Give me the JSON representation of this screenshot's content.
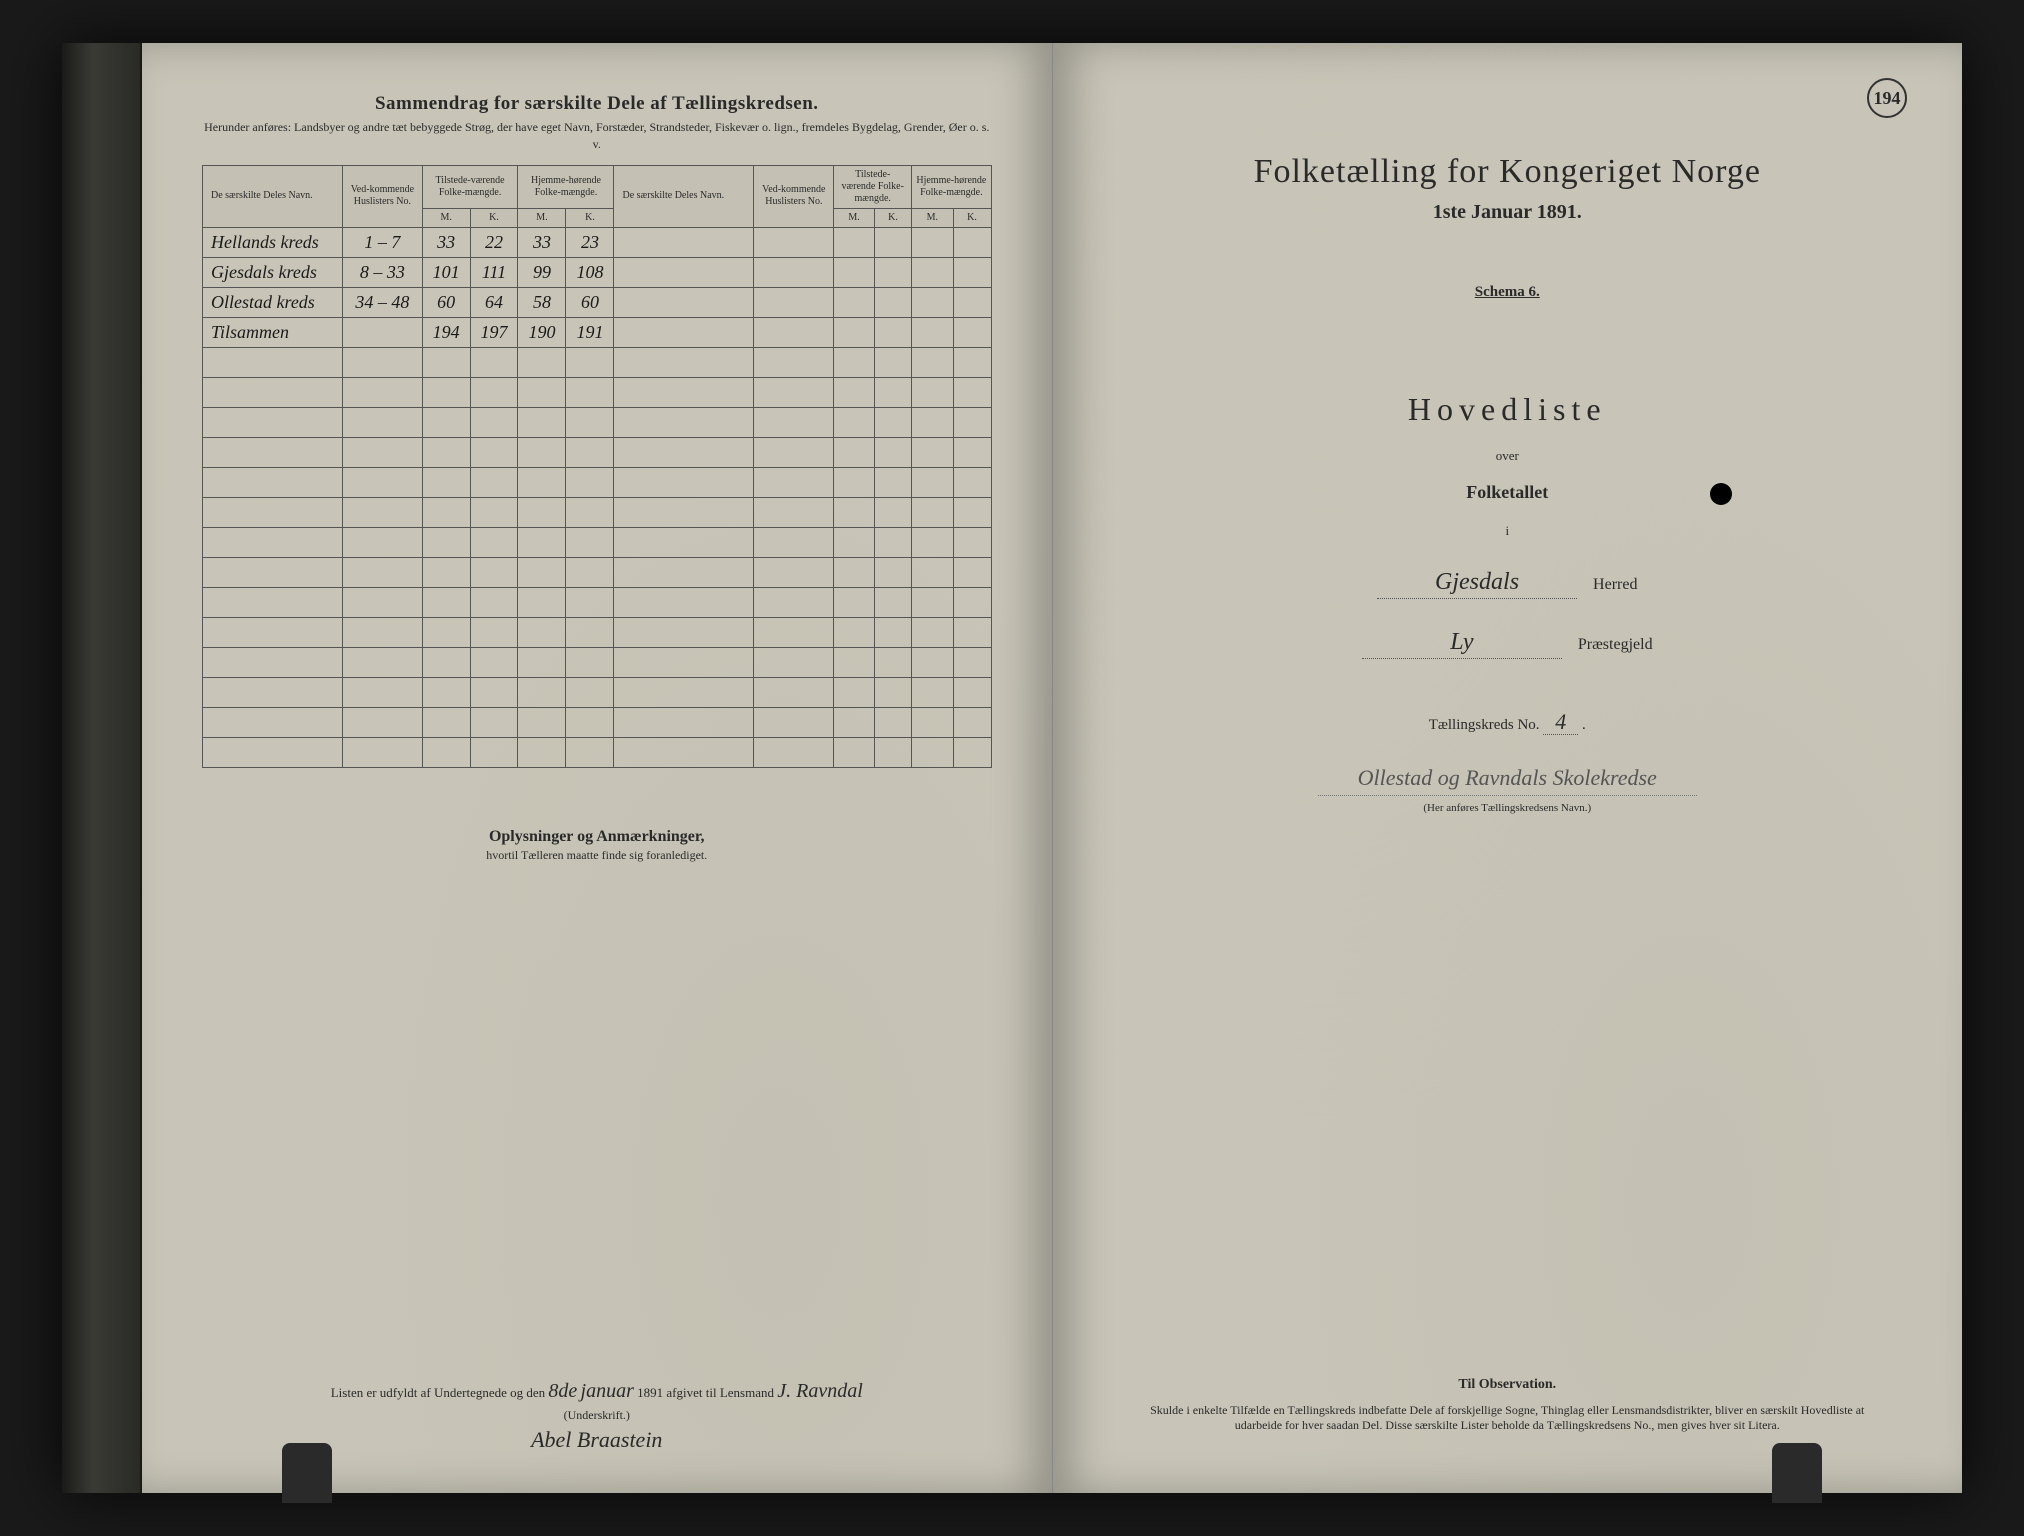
{
  "page_number": "194",
  "left": {
    "title": "Sammendrag for særskilte Dele af Tællingskredsen.",
    "subtitle": "Herunder anføres: Landsbyer og andre tæt bebyggede Strøg, der have eget Navn, Forstæder, Strandsteder, Fiskevær o. lign., fremdeles Bygdelag, Grender, Øer o. s. v.",
    "columns": {
      "name": "De særskilte Deles Navn.",
      "huslister": "Ved-kommende Huslisters No.",
      "tilstede": "Tilstede-værende Folke-mængde.",
      "hjemme": "Hjemme-hørende Folke-mængde.",
      "name2": "De særskilte Deles Navn.",
      "huslister2": "Ved-kommende Huslisters No.",
      "tilstede2": "Tilstede-værende Folke-mængde.",
      "hjemme2": "Hjemme-hørende Folke-mængde.",
      "m": "M.",
      "k": "K."
    },
    "rows": [
      {
        "name": "Hellands kreds",
        "hus": "1 – 7",
        "tm": "33",
        "tk": "22",
        "hm": "33",
        "hk": "23"
      },
      {
        "name": "Gjesdals kreds",
        "hus": "8 – 33",
        "tm": "101",
        "tk": "111",
        "hm": "99",
        "hk": "108"
      },
      {
        "name": "Ollestad kreds",
        "hus": "34 – 48",
        "tm": "60",
        "tk": "64",
        "hm": "58",
        "hk": "60"
      },
      {
        "name": "Tilsammen",
        "hus": "",
        "tm": "194",
        "tk": "197",
        "hm": "190",
        "hk": "191"
      }
    ],
    "notes_title": "Oplysninger og Anmærkninger,",
    "notes_sub": "hvortil Tælleren maatte finde sig foranlediget.",
    "sig_prefix": "Listen er udfyldt af Undertegnede og den",
    "sig_date_day": "8de",
    "sig_date_month": "januar",
    "sig_year": "1891",
    "sig_suffix": "afgivet til Lensmand",
    "sig_lensmand": "J. Ravndal",
    "undersig_label": "(Underskrift.)",
    "undersig_name": "Abel Braastein"
  },
  "right": {
    "title": "Folketælling for Kongeriget Norge",
    "date": "1ste Januar 1891.",
    "schema": "Schema 6.",
    "hovedliste": "Hovedliste",
    "over": "over",
    "folketallet": "Folketallet",
    "i": "i",
    "herred_value": "Gjesdals",
    "herred_label": "Herred",
    "praeste_value": "Ly",
    "praeste_label": "Præstegjeld",
    "kreds_label": "Tællingskreds No.",
    "kreds_no": "4",
    "kreds_name": "Ollestad og Ravndals Skolekredse",
    "kreds_caption": "(Her anføres Tællingskredsens Navn.)",
    "obs_title": "Til Observation.",
    "obs_text": "Skulde i enkelte Tilfælde en Tællingskreds indbefatte Dele af forskjellige Sogne, Thinglag eller Lensmandsdistrikter, bliver en særskilt Hovedliste at udarbeide for hver saadan Del. Disse særskilte Lister beholde da Tællingskredsens No., men gives hver sit Litera."
  },
  "colors": {
    "page_bg": "#c8c5b8",
    "text": "#2a2a2a",
    "border": "#555555",
    "handwriting": "#1a1a1a"
  }
}
